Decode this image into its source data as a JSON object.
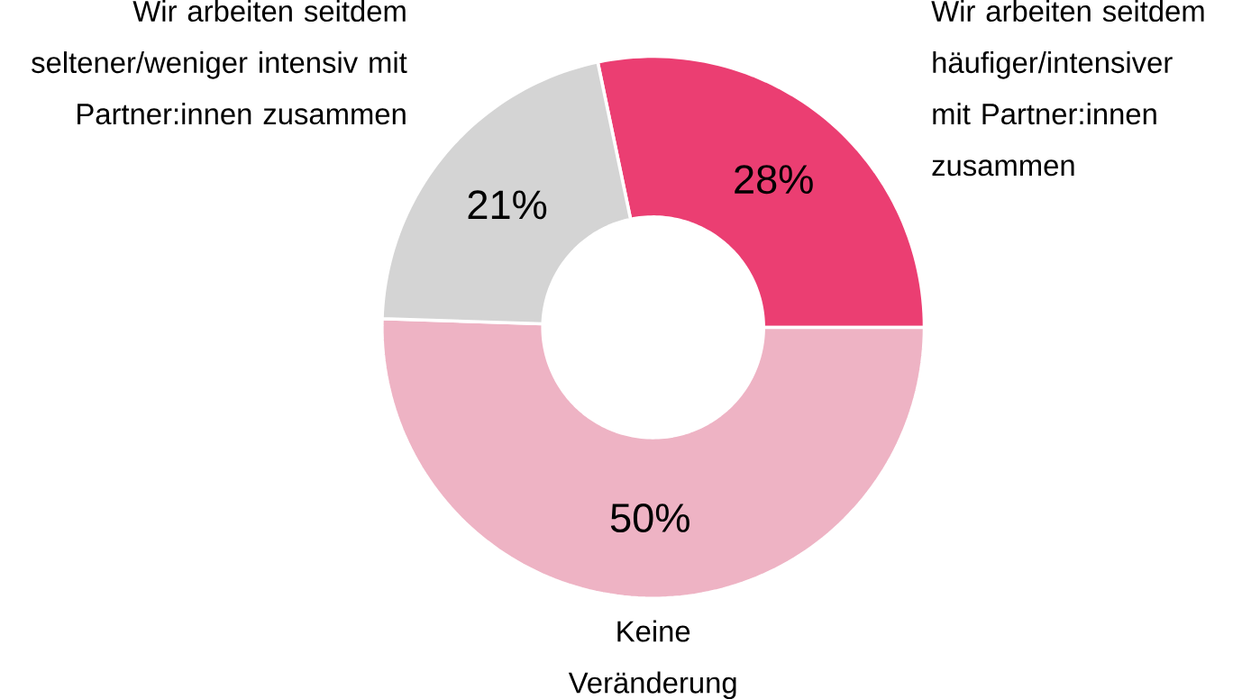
{
  "chart_data": {
    "type": "donut",
    "categories": [
      "Wir arbeiten seitdem häufiger/intensiver mit Partner:innen zusammen",
      "Keine Veränderung",
      "Wir arbeiten seitdem seltener/weniger intensiv mit Partner:innen zusammen"
    ],
    "values": [
      28,
      50,
      21
    ],
    "colors": [
      "#eb3e72",
      "#eeb3c4",
      "#d4d4d4"
    ],
    "value_labels": [
      "28%",
      "50%",
      "21%"
    ]
  }
}
